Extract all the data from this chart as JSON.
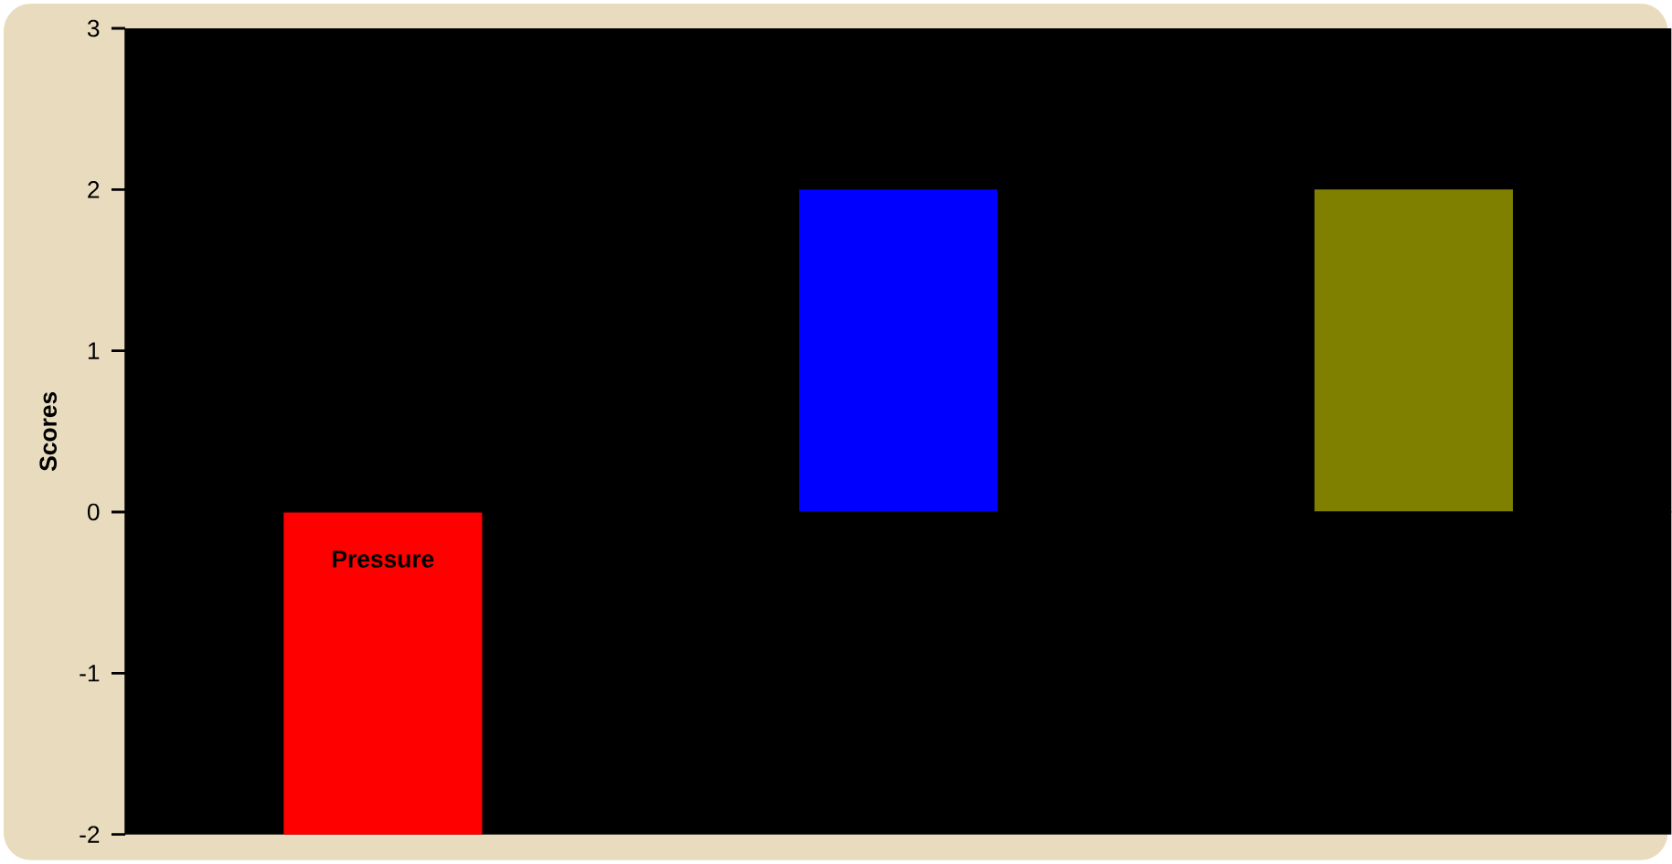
{
  "chart_data": {
    "type": "bar",
    "ylabel": "Scores",
    "categories": [
      "Pressure",
      null,
      null
    ],
    "values": [
      -2,
      2,
      2
    ],
    "colors": [
      "#ff0000",
      "#0000ff",
      "#808000"
    ],
    "ylim": [
      -2,
      3
    ],
    "yticks": [
      -2,
      -1,
      0,
      1,
      2,
      3
    ]
  }
}
